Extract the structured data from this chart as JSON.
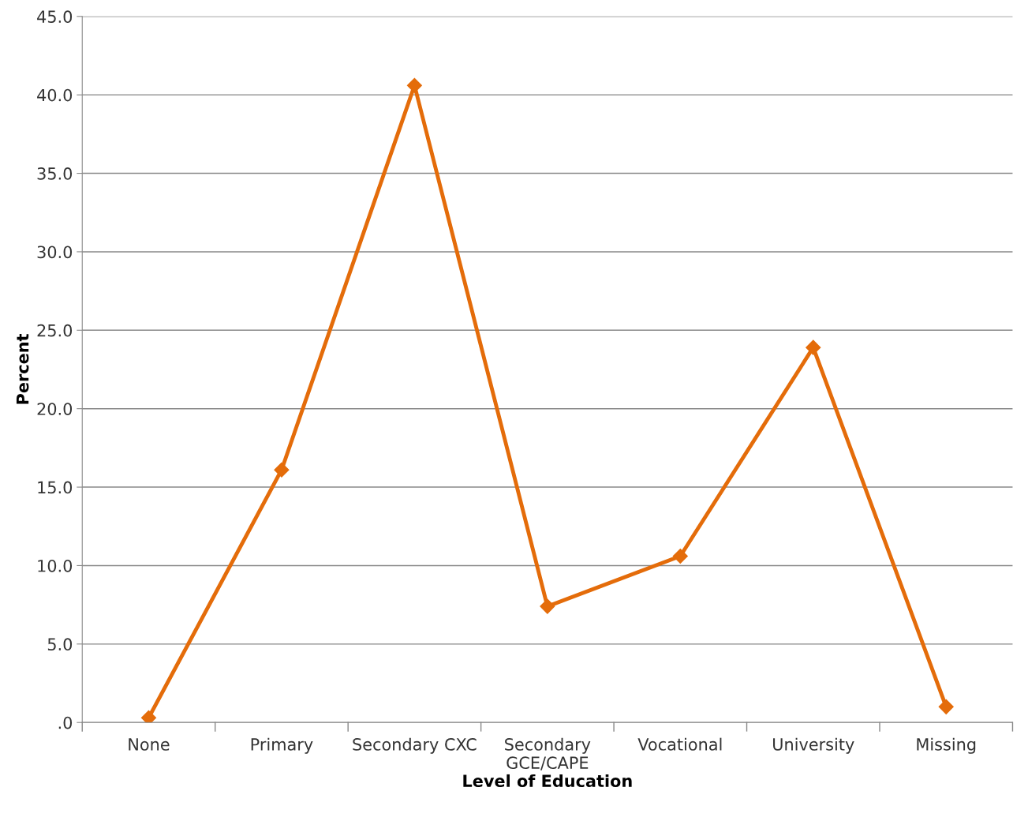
{
  "chart_data": {
    "type": "line",
    "xlabel": "Level of Education",
    "ylabel": "Percent",
    "categories": [
      "None",
      "Primary",
      "Secondary CXC",
      "Secondary\nGCE/CAPE",
      "Vocational",
      "University",
      "Missing"
    ],
    "series": [
      {
        "color": "#e46c0a",
        "values": [
          0.3,
          16.1,
          40.6,
          7.4,
          10.6,
          23.9,
          1.0
        ]
      }
    ],
    "ylim": [
      0,
      45
    ],
    "yticks": [
      {
        "value": 0,
        "label": ".0"
      },
      {
        "value": 5,
        "label": "5.0"
      },
      {
        "value": 10,
        "label": "10.0"
      },
      {
        "value": 15,
        "label": "15.0"
      },
      {
        "value": 20,
        "label": "20.0"
      },
      {
        "value": 25,
        "label": "25.0"
      },
      {
        "value": 30,
        "label": "30.0"
      },
      {
        "value": 35,
        "label": "35.0"
      },
      {
        "value": 40,
        "label": "40.0"
      },
      {
        "value": 45,
        "label": "45.0"
      }
    ],
    "grid": "y",
    "marker": "diamond",
    "line_style": "solid",
    "legend": false
  }
}
